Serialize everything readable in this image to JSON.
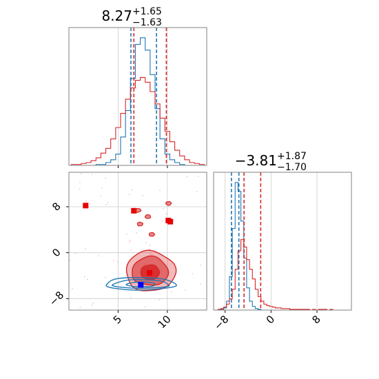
{
  "chart_data": [
    {
      "type": "histogram",
      "panel": "top-left",
      "title": {
        "median": "8.27",
        "plus": "+1.65",
        "minus": "−1.63"
      },
      "xlim": [
        0,
        14
      ],
      "x_ticks": [
        5,
        10
      ],
      "grid": true,
      "bins": [
        0.5,
        1.0,
        1.5,
        2.0,
        2.5,
        3.0,
        3.5,
        4.0,
        4.5,
        5.0,
        5.5,
        6.0,
        6.5,
        7.0,
        7.5,
        8.0,
        8.5,
        9.0,
        9.5,
        10.0,
        10.5,
        11.0,
        11.5,
        12.0,
        12.5,
        13.0,
        13.5
      ],
      "series": [
        {
          "color": "#1f77b4",
          "counts": [
            0,
            0,
            0,
            0,
            0,
            1,
            1,
            3,
            6,
            12,
            30,
            58,
            92,
            128,
            135,
            122,
            96,
            60,
            28,
            12,
            6,
            3,
            1,
            0,
            0,
            0,
            0
          ],
          "quantile_lines": [
            6.3,
            8.9
          ]
        },
        {
          "color": "#d62728",
          "counts": [
            1,
            1,
            2,
            3,
            5,
            8,
            13,
            18,
            28,
            40,
            55,
            70,
            82,
            90,
            93,
            88,
            78,
            65,
            50,
            36,
            25,
            16,
            10,
            6,
            3,
            2,
            1
          ],
          "quantile_lines": [
            6.6,
            9.9
          ]
        }
      ]
    },
    {
      "type": "contour",
      "panel": "bottom-left",
      "xlim": [
        0,
        14
      ],
      "ylim": [
        -10,
        14
      ],
      "x_ticks": [
        5,
        10
      ],
      "y_ticks": [
        8,
        0,
        -8
      ],
      "grid": true,
      "series": [
        {
          "color": "#d62728",
          "center": [
            8.2,
            -3.5
          ],
          "levels": [
            {
              "rx": [
                2.4,
                2.6
              ],
              "ry": [
                3.2,
                3.8
              ]
            },
            {
              "rx": [
                1.8,
                1.9
              ],
              "ry": [
                2.2,
                2.8
              ]
            },
            {
              "rx": [
                0.9,
                1.0
              ],
              "ry": [
                1.2,
                1.4
              ]
            }
          ],
          "outliers": [
            [
              1.7,
              8.2
            ],
            [
              10.1,
              5.6
            ],
            [
              10.3,
              5.4
            ],
            [
              6.6,
              7.3
            ]
          ]
        },
        {
          "color": "#1f77b4",
          "center": [
            7.3,
            -5.6
          ],
          "levels": [
            {
              "rx": [
                3.6,
                3.5
              ],
              "ry": [
                0.9,
                1.3
              ]
            },
            {
              "rx": [
                2.8,
                2.9
              ],
              "ry": [
                0.6,
                0.9
              ]
            },
            {
              "rx": [
                1.4,
                1.5
              ],
              "ry": [
                0.35,
                0.5
              ]
            }
          ],
          "outliers": []
        }
      ]
    },
    {
      "type": "histogram",
      "panel": "bottom-right",
      "title": {
        "median": "−3.81",
        "plus": "+1.87",
        "minus": "−1.70"
      },
      "xlim": [
        -10,
        14
      ],
      "x_ticks": [
        -8,
        0,
        8
      ],
      "grid": true,
      "bins": [
        -9.5,
        -9.0,
        -8.5,
        -8.0,
        -7.5,
        -7.0,
        -6.5,
        -6.0,
        -5.5,
        -5.0,
        -4.5,
        -4.0,
        -3.5,
        -3.0,
        -2.5,
        -2.0,
        -1.5,
        -1.0,
        -0.5,
        0.0,
        0.5,
        1.0,
        1.5,
        2.0,
        2.5,
        3.0,
        3.5,
        4.0,
        4.5,
        5.0,
        5.5,
        6.0,
        6.5,
        7.0,
        7.5,
        8.0,
        8.5,
        9.0,
        9.5,
        10.0,
        10.5,
        11.0,
        11.5,
        12.0,
        12.5,
        13.0
      ],
      "series": [
        {
          "color": "#1f77b4",
          "counts": [
            0,
            0,
            1,
            3,
            12,
            45,
            110,
            172,
            160,
            120,
            70,
            30,
            12,
            5,
            2,
            1,
            0,
            0,
            0,
            0,
            0,
            0,
            0,
            0,
            0,
            0,
            0,
            0,
            0,
            0,
            0,
            0,
            0,
            0,
            0,
            0,
            0,
            0,
            0,
            0,
            0,
            0,
            0,
            0,
            0,
            0
          ],
          "quantile_lines": [
            -6.9,
            -5.6
          ]
        },
        {
          "color": "#d62728",
          "counts": [
            0,
            1,
            2,
            4,
            8,
            15,
            28,
            55,
            80,
            95,
            85,
            68,
            55,
            42,
            28,
            18,
            12,
            8,
            6,
            5,
            4,
            3,
            3,
            2,
            2,
            2,
            1,
            1,
            1,
            1,
            1,
            1,
            1,
            0,
            1,
            0,
            1,
            1,
            1,
            0,
            1,
            0,
            0,
            0,
            0,
            0
          ],
          "quantile_lines": [
            -4.7,
            -1.8
          ]
        }
      ]
    }
  ]
}
